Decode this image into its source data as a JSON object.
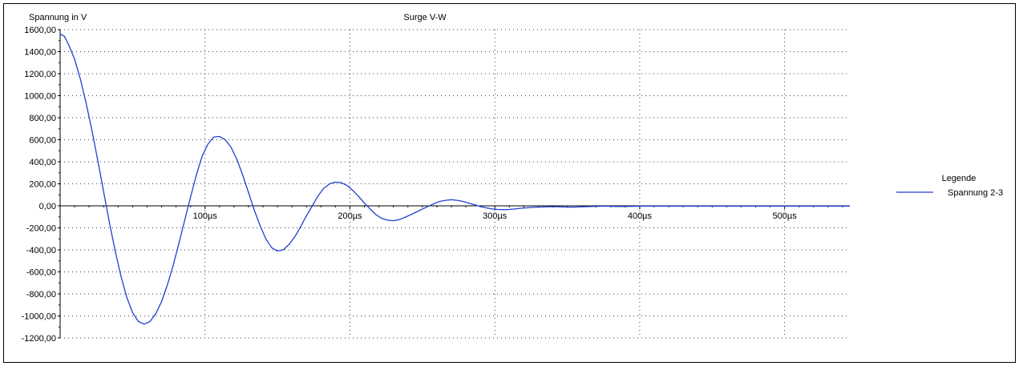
{
  "chart_data": {
    "type": "line",
    "title": "Surge V-W",
    "ylabel": "Spannung in V",
    "xlabel": "",
    "y_ticks": [
      1600,
      1400,
      1200,
      1000,
      800,
      600,
      400,
      200,
      0,
      -200,
      -400,
      -600,
      -800,
      -1000,
      -1200
    ],
    "y_tick_labels": [
      "1600,00",
      "1400,00",
      "1200,00",
      "1000,00",
      "800,00",
      "600,00",
      "400,00",
      "200,00",
      "0,00",
      "-200,00",
      "-400,00",
      "-600,00",
      "-800,00",
      "-1000,00",
      "-1200,00"
    ],
    "x_ticks": [
      100,
      200,
      300,
      400,
      500
    ],
    "x_tick_labels": [
      "100µs",
      "200µs",
      "300µs",
      "400µs",
      "500µs"
    ],
    "ylim": [
      -1200,
      1600
    ],
    "xlim": [
      0,
      545
    ],
    "grid": true,
    "legend": {
      "title": "Legende",
      "position": "right"
    },
    "series": [
      {
        "name": "Spannung 2-3",
        "color": "#1f3fd1",
        "x": [
          0,
          3,
          6,
          10,
          14,
          18,
          22,
          26,
          30,
          34,
          38,
          42,
          46,
          50,
          54,
          58,
          62,
          66,
          70,
          74,
          78,
          82,
          86,
          90,
          94,
          98,
          102,
          106,
          110,
          114,
          118,
          122,
          126,
          130,
          134,
          138,
          142,
          146,
          150,
          154,
          158,
          162,
          166,
          170,
          174,
          178,
          182,
          186,
          190,
          194,
          198,
          202,
          206,
          210,
          214,
          218,
          222,
          226,
          230,
          234,
          238,
          242,
          246,
          250,
          254,
          258,
          262,
          266,
          270,
          274,
          278,
          282,
          286,
          290,
          294,
          298,
          302,
          306,
          310,
          314,
          318,
          322,
          326,
          330,
          334,
          338,
          342,
          346,
          350,
          354,
          358,
          362,
          366,
          370,
          374,
          378,
          382,
          386,
          390,
          394,
          398,
          402,
          406,
          410,
          414,
          418,
          422,
          426,
          430,
          434,
          438,
          442,
          446,
          450,
          454,
          458,
          462,
          466,
          470,
          474,
          478,
          482,
          486,
          490,
          494,
          498,
          502,
          506,
          510,
          514,
          518,
          522,
          526,
          530,
          534,
          538,
          542,
          545
        ],
        "y": [
          1560,
          1540,
          1460,
          1330,
          1150,
          930,
          680,
          410,
          130,
          -150,
          -410,
          -640,
          -830,
          -970,
          -1050,
          -1075,
          -1050,
          -980,
          -870,
          -720,
          -540,
          -340,
          -130,
          80,
          280,
          450,
          560,
          625,
          630,
          600,
          530,
          420,
          280,
          120,
          -40,
          -180,
          -300,
          -380,
          -410,
          -400,
          -350,
          -280,
          -190,
          -90,
          0,
          90,
          160,
          200,
          215,
          210,
          185,
          140,
          85,
          25,
          -30,
          -80,
          -115,
          -130,
          -135,
          -125,
          -105,
          -80,
          -55,
          -30,
          -5,
          20,
          40,
          50,
          55,
          50,
          40,
          25,
          10,
          -5,
          -18,
          -28,
          -33,
          -35,
          -33,
          -28,
          -22,
          -18,
          -14,
          -12,
          -10,
          -8,
          -8,
          -10,
          -12,
          -12,
          -10,
          -8,
          -6,
          -5,
          -4,
          -4,
          -5,
          -6,
          -6,
          -5,
          -4,
          -3,
          -3,
          -3,
          -3,
          -3,
          -3,
          -3,
          -3,
          -3,
          -3,
          -3,
          -3,
          -3,
          -3,
          -3,
          -3,
          -3,
          -3,
          -3,
          -3,
          -3,
          -3,
          -3,
          -3,
          -3,
          -3,
          -3,
          -3,
          -3,
          -3,
          -3,
          -3,
          -3,
          -3,
          -3,
          -3,
          -3
        ]
      }
    ]
  }
}
